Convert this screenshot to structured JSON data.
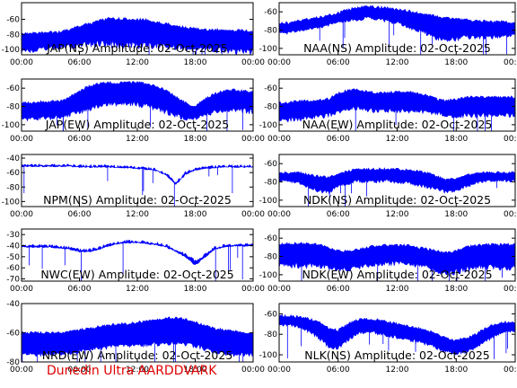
{
  "footer_text": "Dunedin Ultra AARDDVARK",
  "colors": {
    "trace": "#0000ff",
    "footer": "#e00000",
    "axes": "#000000"
  },
  "chart_data": [
    {
      "type": "line",
      "title": "JAP(NS) Amplitude: 02-Oct-2025",
      "x_ticks": [
        "00:00",
        "06:00",
        "12:00",
        "18:00",
        "00:00"
      ],
      "y_ticks": [
        -100,
        -80,
        -60
      ],
      "ylim": [
        -107,
        -38
      ],
      "series": [
        {
          "x_hours": [
            0,
            1,
            2,
            3,
            4,
            5,
            6,
            7,
            8,
            9,
            10,
            11,
            12,
            13,
            14,
            15,
            16,
            17,
            18,
            19,
            20,
            21,
            22,
            23,
            24
          ],
          "y": [
            -79,
            -79,
            -78,
            -77,
            -77,
            -73,
            -69,
            -66,
            -62,
            -59,
            -59,
            -60,
            -60,
            -61,
            -64,
            -66,
            -69,
            -71,
            -72,
            -74,
            -74,
            -74,
            -75,
            -75,
            -76
          ],
          "low": [
            -100,
            -100,
            -98,
            -96,
            -95,
            -94,
            -92,
            -90,
            -90,
            -89,
            -90,
            -90,
            -92,
            -92,
            -92,
            -93,
            -94,
            -95,
            -96,
            -96,
            -98,
            -98,
            -100,
            -100,
            -100
          ]
        }
      ]
    },
    {
      "type": "line",
      "title": "NAA(NS) Amplitude: 02-Oct-2025",
      "x_ticks": [
        "00:00",
        "06:00",
        "12:00",
        "18:00",
        "00:00"
      ],
      "y_ticks": [
        -100,
        -80,
        -60
      ],
      "ylim": [
        -107,
        -50
      ],
      "series": [
        {
          "x_hours": [
            0,
            1,
            2,
            3,
            4,
            5,
            6,
            7,
            8,
            9,
            10,
            11,
            12,
            13,
            14,
            15,
            16,
            17,
            18,
            19,
            20,
            21,
            22,
            23,
            24
          ],
          "y": [
            -73,
            -72,
            -70,
            -68,
            -66,
            -64,
            -61,
            -58,
            -55,
            -54,
            -55,
            -56,
            -57,
            -59,
            -61,
            -63,
            -65,
            -67,
            -68,
            -69,
            -70,
            -70,
            -71,
            -71,
            -72
          ],
          "low": [
            -82,
            -82,
            -80,
            -78,
            -76,
            -74,
            -71,
            -68,
            -67,
            -66,
            -67,
            -69,
            -71,
            -74,
            -78,
            -82,
            -86,
            -88,
            -88,
            -86,
            -86,
            -86,
            -86,
            -85,
            -84
          ]
        }
      ]
    },
    {
      "type": "line",
      "title": "JAP(EW) Amplitude: 02-Oct-2025",
      "x_ticks": [
        "00:00",
        "06:00",
        "12:00",
        "18:00",
        "00:00"
      ],
      "y_ticks": [
        -100,
        -80,
        -60
      ],
      "ylim": [
        -107,
        -50
      ],
      "series": [
        {
          "x_hours": [
            0,
            1,
            2,
            3,
            4,
            5,
            6,
            7,
            8,
            9,
            10,
            11,
            12,
            13,
            14,
            15,
            16,
            17,
            18,
            19,
            20,
            21,
            22,
            23,
            24
          ],
          "y": [
            -76,
            -76,
            -75,
            -75,
            -74,
            -70,
            -63,
            -58,
            -55,
            -54,
            -54,
            -54,
            -54,
            -55,
            -58,
            -62,
            -70,
            -76,
            -80,
            -72,
            -66,
            -63,
            -62,
            -63,
            -64
          ],
          "low": [
            -92,
            -92,
            -92,
            -91,
            -90,
            -88,
            -84,
            -80,
            -77,
            -75,
            -75,
            -75,
            -76,
            -77,
            -80,
            -84,
            -88,
            -92,
            -92,
            -88,
            -84,
            -82,
            -82,
            -83,
            -84
          ]
        }
      ]
    },
    {
      "type": "line",
      "title": "NAA(EW) Amplitude: 02-Oct-2025",
      "x_ticks": [
        "00:00",
        "06:00",
        "12:00",
        "18:00",
        "00:00"
      ],
      "y_ticks": [
        -100,
        -80,
        -60
      ],
      "ylim": [
        -107,
        -50
      ],
      "series": [
        {
          "x_hours": [
            0,
            1,
            2,
            3,
            4,
            5,
            6,
            7,
            8,
            9,
            10,
            11,
            12,
            13,
            14,
            15,
            16,
            17,
            18,
            19,
            20,
            21,
            22,
            23,
            24
          ],
          "y": [
            -76,
            -76,
            -74,
            -74,
            -73,
            -72,
            -66,
            -62,
            -62,
            -64,
            -65,
            -65,
            -64,
            -64,
            -66,
            -68,
            -72,
            -74,
            -72,
            -70,
            -70,
            -70,
            -70,
            -70,
            -70
          ],
          "low": [
            -93,
            -93,
            -92,
            -91,
            -90,
            -88,
            -84,
            -80,
            -80,
            -82,
            -83,
            -83,
            -83,
            -83,
            -84,
            -85,
            -86,
            -88,
            -89,
            -88,
            -88,
            -88,
            -88,
            -88,
            -88
          ]
        }
      ]
    },
    {
      "type": "line",
      "title": "NPM(NS) Amplitude: 02-Oct-2025",
      "x_ticks": [
        "00:00",
        "06:00",
        "12:00",
        "18:00",
        "00:00"
      ],
      "y_ticks": [
        -100,
        -80,
        -60,
        -40
      ],
      "ylim": [
        -107,
        -35
      ],
      "series": [
        {
          "x_hours": [
            0,
            1,
            2,
            3,
            4,
            5,
            6,
            7,
            8,
            9,
            10,
            11,
            12,
            13,
            14,
            15,
            16,
            17,
            18,
            19,
            20,
            21,
            22,
            23,
            24
          ],
          "y": [
            -50,
            -50,
            -50,
            -50,
            -50,
            -50,
            -51,
            -51,
            -51,
            -51,
            -52,
            -52,
            -53,
            -54,
            -56,
            -62,
            -74,
            -60,
            -55,
            -53,
            -52,
            -51,
            -51,
            -51,
            -51
          ],
          "low": [
            -51,
            -51,
            -51,
            -51,
            -51,
            -51,
            -52,
            -52,
            -52,
            -52,
            -53,
            -53,
            -54,
            -55,
            -57,
            -63,
            -76,
            -62,
            -56,
            -54,
            -53,
            -52,
            -52,
            -52,
            -52
          ]
        }
      ]
    },
    {
      "type": "line",
      "title": "NDK(NS) Amplitude: 02-Oct-2025",
      "x_ticks": [
        "00:00",
        "06:00",
        "12:00",
        "18:00",
        "00:00"
      ],
      "y_ticks": [
        -100,
        -80,
        -60
      ],
      "ylim": [
        -107,
        -50
      ],
      "series": [
        {
          "x_hours": [
            0,
            1,
            2,
            3,
            4,
            5,
            6,
            7,
            8,
            9,
            10,
            11,
            12,
            13,
            14,
            15,
            16,
            17,
            18,
            19,
            20,
            21,
            22,
            23,
            24
          ],
          "y": [
            -70,
            -70,
            -70,
            -72,
            -74,
            -75,
            -72,
            -68,
            -66,
            -66,
            -66,
            -66,
            -66,
            -67,
            -68,
            -70,
            -74,
            -78,
            -76,
            -73,
            -71,
            -70,
            -70,
            -70,
            -70
          ],
          "low": [
            -78,
            -78,
            -80,
            -84,
            -88,
            -90,
            -84,
            -80,
            -78,
            -78,
            -78,
            -78,
            -79,
            -80,
            -82,
            -84,
            -86,
            -90,
            -88,
            -84,
            -80,
            -78,
            -78,
            -78,
            -78
          ]
        }
      ]
    },
    {
      "type": "line",
      "title": "NWC(EW) Amplitude: 02-Oct-2025",
      "x_ticks": [
        "00:00",
        "06:00",
        "12:00",
        "18:00",
        "00:00"
      ],
      "y_ticks": [
        -70,
        -60,
        -50,
        -40,
        -30
      ],
      "ylim": [
        -72,
        -25
      ],
      "series": [
        {
          "x_hours": [
            0,
            1,
            2,
            3,
            4,
            5,
            6,
            7,
            8,
            9,
            10,
            11,
            12,
            13,
            14,
            15,
            16,
            17,
            18,
            19,
            20,
            21,
            22,
            23,
            24
          ],
          "y": [
            -40,
            -40,
            -40,
            -40,
            -41,
            -42,
            -44,
            -44,
            -42,
            -39,
            -37,
            -36,
            -36,
            -37,
            -38,
            -40,
            -44,
            -48,
            -54,
            -48,
            -42,
            -40,
            -39,
            -39,
            -39
          ],
          "low": [
            -41,
            -41,
            -41,
            -41,
            -42,
            -43,
            -45,
            -45,
            -43,
            -40,
            -38,
            -37,
            -37,
            -38,
            -39,
            -41,
            -45,
            -50,
            -57,
            -50,
            -43,
            -41,
            -40,
            -40,
            -40
          ]
        }
      ]
    },
    {
      "type": "line",
      "title": "NDK(EW) Amplitude: 02-Oct-2025",
      "x_ticks": [
        "00:00",
        "06:00",
        "12:00",
        "18:00",
        "00:00"
      ],
      "y_ticks": [
        -100,
        -80,
        -60
      ],
      "ylim": [
        -107,
        -50
      ],
      "series": [
        {
          "x_hours": [
            0,
            1,
            2,
            3,
            4,
            5,
            6,
            7,
            8,
            9,
            10,
            11,
            12,
            13,
            14,
            15,
            16,
            17,
            18,
            19,
            20,
            21,
            22,
            23,
            24
          ],
          "y": [
            -66,
            -66,
            -66,
            -66,
            -67,
            -70,
            -74,
            -74,
            -72,
            -70,
            -68,
            -68,
            -68,
            -68,
            -70,
            -72,
            -74,
            -76,
            -74,
            -70,
            -68,
            -67,
            -67,
            -67,
            -67
          ],
          "low": [
            -88,
            -88,
            -88,
            -88,
            -88,
            -90,
            -92,
            -92,
            -90,
            -88,
            -86,
            -86,
            -86,
            -86,
            -88,
            -90,
            -94,
            -97,
            -95,
            -92,
            -90,
            -90,
            -90,
            -90,
            -90
          ]
        }
      ]
    },
    {
      "type": "line",
      "title": "NRD(EW) Amplitude: 02-Oct-2025",
      "x_ticks": [
        "00:00",
        "06:00",
        "12:00",
        "18:00",
        "00:00"
      ],
      "y_ticks": [
        -80,
        -60,
        -40
      ],
      "ylim": [
        -80,
        -40
      ],
      "series": [
        {
          "x_hours": [
            0,
            1,
            2,
            3,
            4,
            5,
            6,
            7,
            8,
            9,
            10,
            11,
            12,
            13,
            14,
            15,
            16,
            17,
            18,
            19,
            20,
            21,
            22,
            23,
            24
          ],
          "y": [
            -60,
            -60,
            -60,
            -60,
            -60,
            -59,
            -58,
            -57,
            -56,
            -55,
            -54,
            -54,
            -53,
            -52,
            -51,
            -50,
            -50,
            -51,
            -53,
            -55,
            -57,
            -58,
            -59,
            -60,
            -60
          ],
          "low": [
            -74,
            -74,
            -74,
            -74,
            -74,
            -73,
            -72,
            -71,
            -70,
            -69,
            -68,
            -68,
            -68,
            -67,
            -67,
            -66,
            -66,
            -67,
            -68,
            -70,
            -72,
            -73,
            -74,
            -74,
            -74
          ]
        }
      ]
    },
    {
      "type": "line",
      "title": "NLK(NS) Amplitude: 02-Oct-2025",
      "x_ticks": [
        "00:00",
        "06:00",
        "12:00",
        "18:00",
        "00:00"
      ],
      "y_ticks": [
        -100,
        -80,
        -60
      ],
      "ylim": [
        -107,
        -50
      ],
      "series": [
        {
          "x_hours": [
            0,
            1,
            2,
            3,
            4,
            5,
            6,
            7,
            8,
            9,
            10,
            11,
            12,
            13,
            14,
            15,
            16,
            17,
            18,
            19,
            20,
            21,
            22,
            23,
            24
          ],
          "y": [
            -62,
            -62,
            -63,
            -65,
            -68,
            -74,
            -76,
            -70,
            -66,
            -65,
            -66,
            -68,
            -70,
            -72,
            -74,
            -76,
            -80,
            -84,
            -86,
            -84,
            -80,
            -74,
            -70,
            -68,
            -68
          ],
          "low": [
            -70,
            -70,
            -72,
            -76,
            -82,
            -90,
            -92,
            -84,
            -78,
            -76,
            -78,
            -80,
            -82,
            -84,
            -86,
            -88,
            -92,
            -96,
            -98,
            -96,
            -92,
            -86,
            -80,
            -76,
            -76
          ]
        }
      ]
    }
  ]
}
